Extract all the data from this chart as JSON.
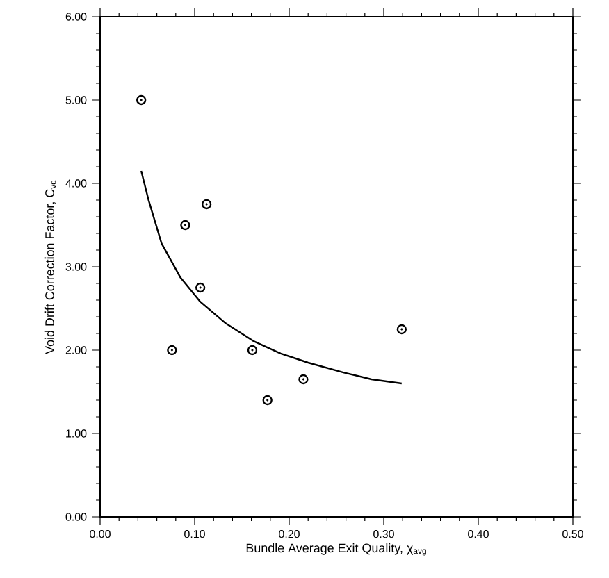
{
  "chart_data": {
    "type": "scatter",
    "xlabel": "Bundle Average Exit Quality, χ$_{avg}$",
    "ylabel": "Void Drift Correction Factor, C$_{vd}$",
    "xlim": [
      0,
      0.5
    ],
    "ylim": [
      0,
      6
    ],
    "xticks": [
      {
        "value": 0,
        "label": "0.00"
      },
      {
        "value": 0.1,
        "label": "0.10"
      },
      {
        "value": 0.2,
        "label": "0.20"
      },
      {
        "value": 0.3,
        "label": "0.30"
      },
      {
        "value": 0.4,
        "label": "0.40"
      },
      {
        "value": 0.5,
        "label": "0.50"
      }
    ],
    "yticks": [
      {
        "value": 0,
        "label": "0.00"
      },
      {
        "value": 1,
        "label": "1.00"
      },
      {
        "value": 2,
        "label": "2.00"
      },
      {
        "value": 3,
        "label": "3.00"
      },
      {
        "value": 4,
        "label": "4.00"
      },
      {
        "value": 5,
        "label": "5.00"
      },
      {
        "value": 6,
        "label": "6.00"
      }
    ],
    "series": [
      {
        "type": "scatter",
        "marker": "circle",
        "color": "#000000",
        "x": [
          0.0435,
          0.076,
          0.09,
          0.106,
          0.1126,
          0.161,
          0.177,
          0.215,
          0.319
        ],
        "values": [
          5.0,
          2.0,
          3.5,
          2.75,
          3.75,
          2.0,
          1.4,
          1.65,
          2.25
        ]
      },
      {
        "type": "line",
        "marker": "none",
        "line_style": "solid",
        "color": "#000000",
        "x": [
          0.0435,
          0.051,
          0.065,
          0.085,
          0.106,
          0.133,
          0.162,
          0.191,
          0.22,
          0.258,
          0.287,
          0.319
        ],
        "values": [
          4.15,
          3.81,
          3.28,
          2.87,
          2.58,
          2.32,
          2.11,
          1.96,
          1.85,
          1.73,
          1.65,
          1.6
        ]
      }
    ]
  }
}
